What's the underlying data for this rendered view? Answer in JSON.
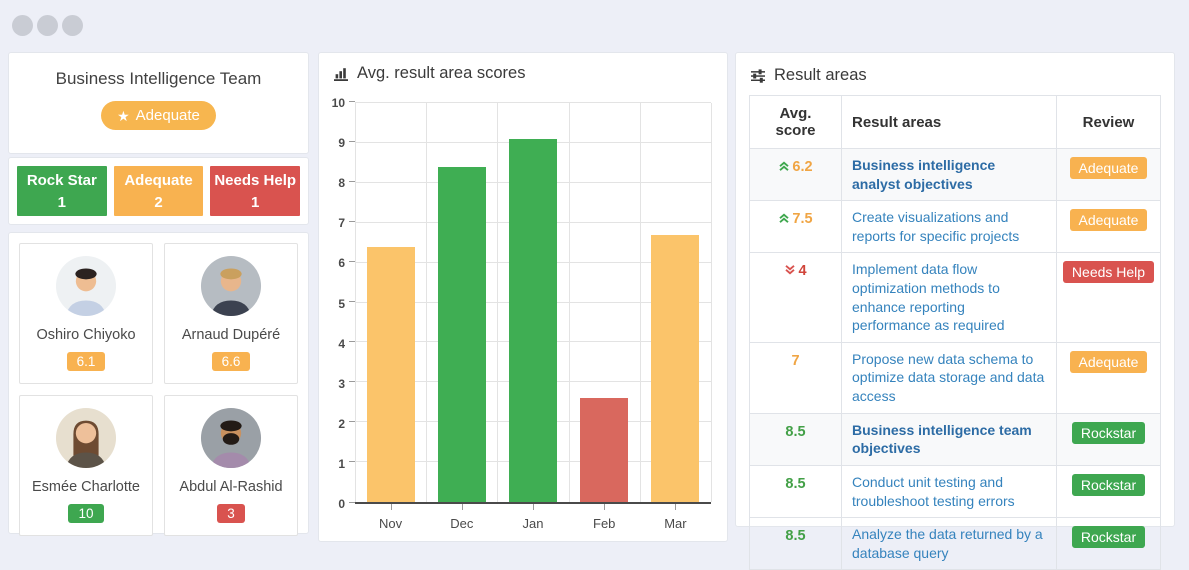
{
  "window": {
    "controls": [
      "minimize-dot",
      "maximize-dot",
      "close-dot"
    ]
  },
  "colors": {
    "orange": "#f8b250",
    "green": "#3ea750",
    "red": "#d9534f",
    "bar_orange": "#fbc46a",
    "bar_green": "#3fae53",
    "bar_red": "#d9685e",
    "link_blue": "#3583bd",
    "bold_blue": "#2d6ca5"
  },
  "team_panel": {
    "title": "Business Intelligence Team",
    "rating_badge": {
      "label": "Adequate",
      "icon": "star",
      "color": "#f7b64f"
    },
    "stats": [
      {
        "label": "Rock Star",
        "count": "1",
        "color": "#3ea750"
      },
      {
        "label": "Adequate",
        "count": "2",
        "color": "#f8b250"
      },
      {
        "label": "Needs Help",
        "count": "1",
        "color": "#d9534f"
      }
    ],
    "members": [
      {
        "name": "Oshiro Chiyoko",
        "score": "6.1",
        "score_color": "#f8b250",
        "avatar": {
          "style": "short",
          "bg": "#eef1f3",
          "hair": "#2b2220",
          "skin": "#eebd92",
          "shirt": "#c4d0e4"
        }
      },
      {
        "name": "Arnaud Dupéré",
        "score": "6.6",
        "score_color": "#f8b250",
        "avatar": {
          "style": "short",
          "bg": "#b6bcc2",
          "hair": "#caa05e",
          "skin": "#e8b68c",
          "shirt": "#3c4250"
        }
      },
      {
        "name": "Esmée Charlotte",
        "score": "10",
        "score_color": "#3ea750",
        "avatar": {
          "style": "long",
          "bg": "#e7dfcf",
          "hair": "#6e4b32",
          "skin": "#eec09a",
          "shirt": "#5c5348"
        }
      },
      {
        "name": "Abdul Al-Rashid",
        "score": "3",
        "score_color": "#d9534f",
        "avatar": {
          "style": "beard",
          "bg": "#9aa0a6",
          "hair": "#231b16",
          "skin": "#c9915f",
          "shirt": "#a48bab"
        }
      }
    ]
  },
  "chart_panel": {
    "title": "Avg. result area scores"
  },
  "chart_data": {
    "type": "bar",
    "title": "Avg. result area scores",
    "categories": [
      "Nov",
      "Dec",
      "Jan",
      "Feb",
      "Mar"
    ],
    "values": [
      6.4,
      8.4,
      9.1,
      2.6,
      6.7
    ],
    "bar_colors": [
      "#fbc46a",
      "#3fae53",
      "#3fae53",
      "#d9685e",
      "#fbc46a"
    ],
    "xlabel": "",
    "ylabel": "",
    "ylim": [
      0,
      10
    ],
    "ytick_step": 1,
    "grid": true,
    "legend": false
  },
  "results_panel": {
    "title": "Result areas",
    "headers": [
      "Avg. score",
      "Result areas",
      "Review"
    ],
    "rows": [
      {
        "trend": "up",
        "score": "6.2",
        "score_color": "orange",
        "bold": true,
        "text": "Business intelligence analyst objectives",
        "review": "Adequate",
        "review_color": "#f8b250"
      },
      {
        "trend": "up",
        "score": "7.5",
        "score_color": "orange",
        "bold": false,
        "text": "Create visualizations and reports for specific projects",
        "review": "Adequate",
        "review_color": "#f8b250"
      },
      {
        "trend": "down",
        "score": "4",
        "score_color": "red",
        "bold": false,
        "text": "Implement data flow optimization methods to enhance reporting performance as required",
        "review": "Needs Help",
        "review_color": "#d9534f"
      },
      {
        "trend": "none",
        "score": "7",
        "score_color": "orange",
        "bold": false,
        "text": "Propose new data schema to optimize data storage and data access",
        "review": "Adequate",
        "review_color": "#f8b250"
      },
      {
        "trend": "none",
        "score": "8.5",
        "score_color": "green",
        "bold": true,
        "text": "Business intelligence team objectives",
        "review": "Rockstar",
        "review_color": "#3ea750"
      },
      {
        "trend": "none",
        "score": "8.5",
        "score_color": "green",
        "bold": false,
        "text": "Conduct unit testing and troubleshoot testing errors",
        "review": "Rockstar",
        "review_color": "#3ea750"
      },
      {
        "trend": "none",
        "score": "8.5",
        "score_color": "green",
        "bold": false,
        "text": "Analyze the data returned by a database query",
        "review": "Rockstar",
        "review_color": "#3ea750"
      }
    ]
  }
}
